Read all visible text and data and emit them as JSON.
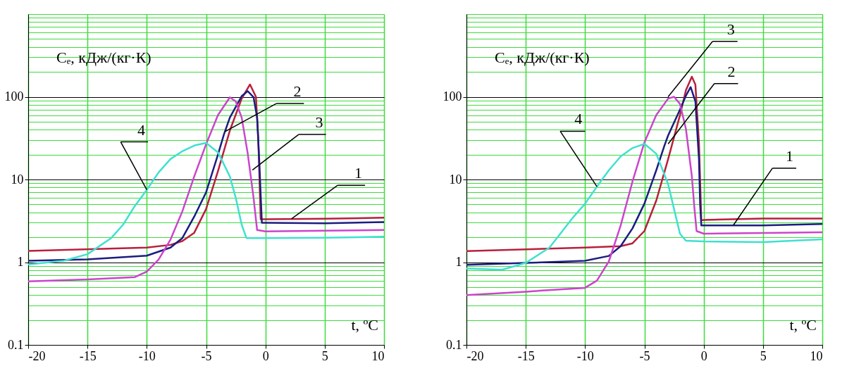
{
  "chart_data": [
    {
      "type": "line",
      "xlabel": "t, ºC",
      "ylabel": "Cₑ, кДж/(кг·К)",
      "xlim": [
        -20,
        10
      ],
      "xticks": [
        -20,
        -15,
        -10,
        -5,
        0,
        5,
        10
      ],
      "ylim": [
        0.1,
        1000
      ],
      "yticks": [
        0.1,
        {
          "value": 0.2,
          "label": null
        },
        {
          "value": 0.3,
          "label": null
        },
        {
          "value": 0.4,
          "label": null
        },
        {
          "value": 0.5,
          "label": null
        },
        {
          "value": 0.6,
          "label": null
        },
        {
          "value": 0.7,
          "label": null
        },
        {
          "value": 0.8,
          "label": null
        },
        {
          "value": 0.9,
          "label": null
        },
        1,
        {
          "value": 2,
          "label": null
        },
        {
          "value": 3,
          "label": null
        },
        {
          "value": 4,
          "label": null
        },
        {
          "value": 5,
          "label": null
        },
        {
          "value": 6,
          "label": null
        },
        {
          "value": 7,
          "label": null
        },
        {
          "value": 8,
          "label": null
        },
        {
          "value": 9,
          "label": null
        },
        10,
        {
          "value": 20,
          "label": null
        },
        {
          "value": 30,
          "label": null
        },
        {
          "value": 40,
          "label": null
        },
        {
          "value": 50,
          "label": null
        },
        {
          "value": 60,
          "label": null
        },
        {
          "value": 70,
          "label": null
        },
        {
          "value": 80,
          "label": null
        },
        {
          "value": 90,
          "label": null
        },
        100,
        {
          "value": 200,
          "label": null
        },
        {
          "value": 300,
          "label": null
        },
        {
          "value": 400,
          "label": null
        },
        {
          "value": 500,
          "label": null
        },
        {
          "value": 600,
          "label": null
        },
        {
          "value": 700,
          "label": null
        },
        {
          "value": 800,
          "label": null
        },
        {
          "value": 900,
          "label": null
        },
        {
          "value": 1000,
          "label": null
        }
      ],
      "log": "y",
      "grid": true,
      "series": [
        {
          "color": "#b8203c",
          "x": [
            -20,
            -10,
            -8,
            -7,
            -6,
            -5,
            -4,
            -3,
            -2,
            -1.3,
            -0.8,
            -0.6,
            -0.4,
            -0.3,
            0,
            5,
            10
          ],
          "values": [
            1.37,
            1.5,
            1.62,
            1.8,
            2.27,
            4.4,
            12.6,
            39,
            95,
            141,
            100,
            31,
            3.3,
            3.3,
            3.3,
            3.35,
            3.45
          ]
        },
        {
          "color": "#1c1c80",
          "x": [
            -20,
            -15,
            -10,
            -8,
            -7,
            -6,
            -5,
            -4,
            -3.5,
            -3,
            -2,
            -1.5,
            -1,
            -0.7,
            -0.5,
            -0.3,
            0,
            5,
            10
          ],
          "values": [
            1.04,
            1.08,
            1.2,
            1.5,
            1.96,
            3.56,
            7.0,
            20,
            35,
            56,
            102,
            117,
            99,
            56,
            14.7,
            3.0,
            3.0,
            2.95,
            3.06
          ]
        },
        {
          "color": "#cc44cc",
          "x": [
            -20,
            -15,
            -11,
            -10,
            -9,
            -8,
            -7,
            -6,
            -5,
            -4,
            -3,
            -2.5,
            -2,
            -1.5,
            -1.2,
            -1,
            -0.7,
            0,
            5,
            10
          ],
          "values": [
            0.585,
            0.62,
            0.66,
            0.77,
            1.08,
            1.88,
            4.13,
            10.9,
            26.7,
            60,
            98.5,
            88,
            56,
            21,
            10,
            6.0,
            2.45,
            2.36,
            2.4,
            2.45
          ]
        },
        {
          "color": "#40e0d0",
          "x": [
            -20,
            -17,
            -15,
            -13,
            -12,
            -11,
            -10,
            -9,
            -8,
            -7,
            -6,
            -5,
            -4,
            -3,
            -2.5,
            -2,
            -1.6,
            0,
            5,
            10
          ],
          "values": [
            0.94,
            1.04,
            1.25,
            1.96,
            2.84,
            4.8,
            7.5,
            12.2,
            17.7,
            22,
            25.7,
            27.7,
            21.3,
            10.9,
            6.0,
            2.84,
            1.96,
            1.96,
            1.98,
            2.03
          ]
        }
      ],
      "annotations": [
        {
          "text": "1",
          "x": 2.2,
          "y": 3.35
        },
        {
          "text": "2",
          "x": -3.4,
          "y": 38
        },
        {
          "text": "3",
          "x": -1.1,
          "y": 13
        },
        {
          "text": "4",
          "x": -10,
          "y": 7.5
        }
      ]
    },
    {
      "type": "line",
      "xlabel": "t, ºC",
      "ylabel": "Cₑ, кДж/(кг·К)",
      "xlim": [
        -20,
        10
      ],
      "xticks": [
        -20,
        -15,
        -10,
        -5,
        0,
        5,
        10
      ],
      "ylim": [
        0.1,
        1000
      ],
      "yticks": [
        0.1,
        {
          "value": 0.2,
          "label": null
        },
        {
          "value": 0.3,
          "label": null
        },
        {
          "value": 0.4,
          "label": null
        },
        {
          "value": 0.5,
          "label": null
        },
        {
          "value": 0.6,
          "label": null
        },
        {
          "value": 0.7,
          "label": null
        },
        {
          "value": 0.8,
          "label": null
        },
        {
          "value": 0.9,
          "label": null
        },
        1,
        {
          "value": 2,
          "label": null
        },
        {
          "value": 3,
          "label": null
        },
        {
          "value": 4,
          "label": null
        },
        {
          "value": 5,
          "label": null
        },
        {
          "value": 6,
          "label": null
        },
        {
          "value": 7,
          "label": null
        },
        {
          "value": 8,
          "label": null
        },
        {
          "value": 9,
          "label": null
        },
        10,
        {
          "value": 20,
          "label": null
        },
        {
          "value": 30,
          "label": null
        },
        {
          "value": 40,
          "label": null
        },
        {
          "value": 50,
          "label": null
        },
        {
          "value": 60,
          "label": null
        },
        {
          "value": 70,
          "label": null
        },
        {
          "value": 80,
          "label": null
        },
        {
          "value": 90,
          "label": null
        },
        100,
        {
          "value": 200,
          "label": null
        },
        {
          "value": 300,
          "label": null
        },
        {
          "value": 400,
          "label": null
        },
        {
          "value": 500,
          "label": null
        },
        {
          "value": 600,
          "label": null
        },
        {
          "value": 700,
          "label": null
        },
        {
          "value": 800,
          "label": null
        },
        {
          "value": 900,
          "label": null
        },
        {
          "value": 1000,
          "label": null
        }
      ],
      "log": "y",
      "grid": true,
      "series": [
        {
          "color": "#b8203c",
          "x": [
            -20,
            -10,
            -7,
            -6,
            -5,
            -4,
            -3,
            -2,
            -1.5,
            -1,
            -0.7,
            -0.4,
            -0.2,
            0,
            5,
            10
          ],
          "values": [
            1.36,
            1.5,
            1.56,
            1.69,
            2.38,
            5.55,
            17.6,
            60,
            120,
            175,
            140,
            28,
            3.2,
            3.24,
            3.37,
            3.37
          ]
        },
        {
          "color": "#1c1c80",
          "x": [
            -20,
            -15,
            -10,
            -8,
            -7,
            -6,
            -5,
            -4,
            -3.3,
            -3,
            -2,
            -1.5,
            -1.1,
            -0.7,
            -0.4,
            -0.3,
            -0.2,
            0,
            5,
            10
          ],
          "values": [
            0.93,
            0.98,
            1.04,
            1.19,
            1.56,
            2.57,
            5.1,
            12.9,
            25.9,
            34,
            70,
            103,
            131,
            88,
            17.6,
            4.95,
            2.78,
            2.78,
            2.78,
            2.89
          ]
        },
        {
          "color": "#cc44cc",
          "x": [
            -20,
            -15,
            -10,
            -9,
            -8,
            -7,
            -6,
            -5,
            -4,
            -3,
            -2.5,
            -2,
            -1.5,
            -1,
            -0.8,
            -0.6,
            0,
            5,
            10
          ],
          "values": [
            0.4,
            0.44,
            0.49,
            0.6,
            1.02,
            2.78,
            9.5,
            28,
            60,
            95,
            100,
            82,
            41,
            11,
            4.8,
            2.38,
            2.21,
            2.25,
            2.3
          ]
        },
        {
          "color": "#40e0d0",
          "x": [
            -20,
            -17,
            -15,
            -13,
            -11,
            -10,
            -9,
            -8,
            -7,
            -6,
            -5,
            -4,
            -3,
            -2.5,
            -2,
            -1.5,
            0,
            5,
            10
          ],
          "values": [
            0.84,
            0.81,
            0.98,
            1.5,
            3.5,
            5.1,
            8.2,
            12.9,
            19,
            24,
            27,
            20.5,
            8.8,
            4.4,
            2.21,
            1.82,
            1.78,
            1.75,
            1.89
          ]
        }
      ],
      "annotations": [
        {
          "text": "1",
          "x": 2.5,
          "y": 2.8
        },
        {
          "text": "2",
          "x": -3.0,
          "y": 26.9
        },
        {
          "text": "3",
          "x": -3.0,
          "y": 100
        },
        {
          "text": "4",
          "x": -9,
          "y": 8.2
        }
      ]
    }
  ]
}
